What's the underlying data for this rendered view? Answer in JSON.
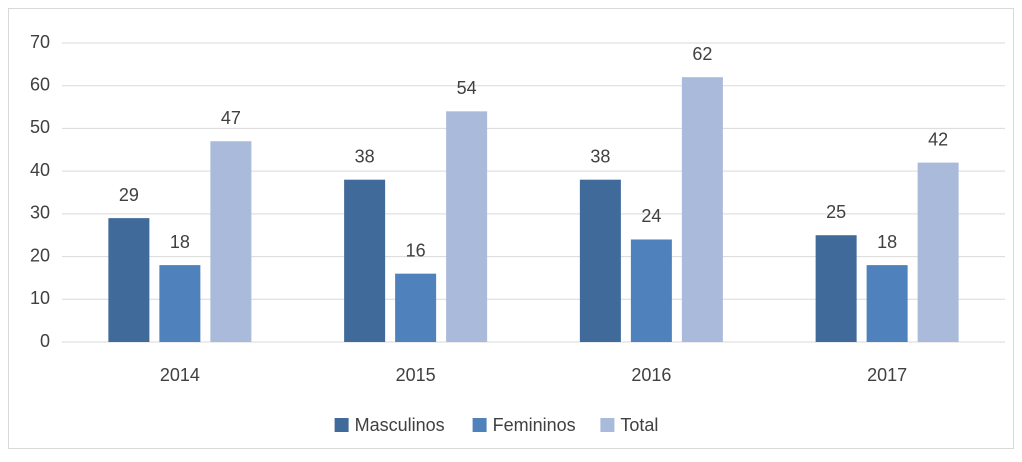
{
  "chart_data": {
    "type": "bar",
    "categories": [
      "2014",
      "2015",
      "2016",
      "2017"
    ],
    "series": [
      {
        "name": "Masculinos",
        "color": "#3f6a9a",
        "values": [
          29,
          38,
          38,
          25
        ]
      },
      {
        "name": "Femininos",
        "color": "#4f81bd",
        "values": [
          18,
          16,
          24,
          18
        ]
      },
      {
        "name": "Total",
        "color": "#a9badb",
        "values": [
          47,
          54,
          62,
          42
        ]
      }
    ],
    "ylim": [
      0,
      70
    ],
    "yticks": [
      0,
      10,
      20,
      30,
      40,
      50,
      60,
      70
    ],
    "grid": true,
    "legend": "bottom"
  }
}
